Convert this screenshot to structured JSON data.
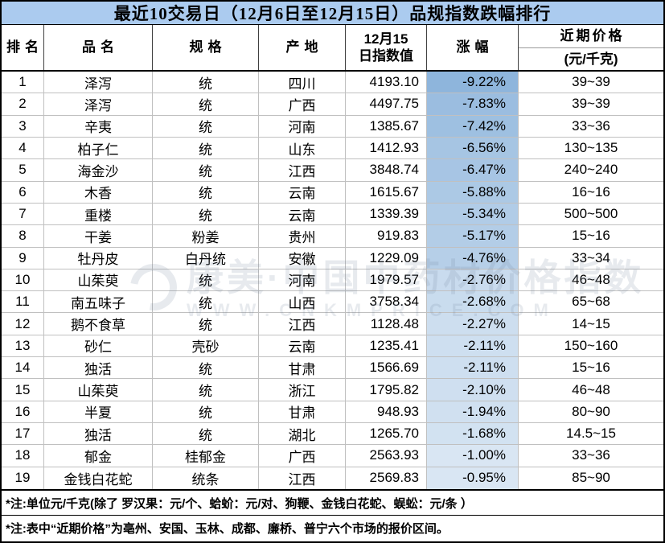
{
  "title": "最近10交易日（12月6日至12月15日）品规指数跌幅排行",
  "header": {
    "rank": "排名",
    "name": "品名",
    "spec": "规格",
    "origin": "产地",
    "index_line1": "12月15",
    "index_line2": "日指数值",
    "change": "涨幅",
    "price_line1": "近期价格",
    "price_line2": "(元/千克)"
  },
  "rows": [
    {
      "rank": "1",
      "name": "泽泻",
      "spec": "统",
      "origin": "四川",
      "index": "4193.10",
      "change": "-9.22%",
      "price": "39~39"
    },
    {
      "rank": "2",
      "name": "泽泻",
      "spec": "统",
      "origin": "广西",
      "index": "4497.75",
      "change": "-7.83%",
      "price": "39~39"
    },
    {
      "rank": "3",
      "name": "辛夷",
      "spec": "统",
      "origin": "河南",
      "index": "1385.67",
      "change": "-7.42%",
      "price": "33~36"
    },
    {
      "rank": "4",
      "name": "柏子仁",
      "spec": "统",
      "origin": "山东",
      "index": "1412.93",
      "change": "-6.56%",
      "price": "130~135"
    },
    {
      "rank": "5",
      "name": "海金沙",
      "spec": "统",
      "origin": "江西",
      "index": "3848.74",
      "change": "-6.47%",
      "price": "240~240"
    },
    {
      "rank": "6",
      "name": "木香",
      "spec": "统",
      "origin": "云南",
      "index": "1615.67",
      "change": "-5.88%",
      "price": "16~16"
    },
    {
      "rank": "7",
      "name": "重楼",
      "spec": "统",
      "origin": "云南",
      "index": "1339.39",
      "change": "-5.34%",
      "price": "500~500"
    },
    {
      "rank": "8",
      "name": "干姜",
      "spec": "粉姜",
      "origin": "贵州",
      "index": "919.83",
      "change": "-5.17%",
      "price": "15~16"
    },
    {
      "rank": "9",
      "name": "牡丹皮",
      "spec": "白丹统",
      "origin": "安徽",
      "index": "1229.09",
      "change": "-4.76%",
      "price": "33~34"
    },
    {
      "rank": "10",
      "name": "山茱萸",
      "spec": "统",
      "origin": "河南",
      "index": "1979.57",
      "change": "-2.76%",
      "price": "46~48"
    },
    {
      "rank": "11",
      "name": "南五味子",
      "spec": "统",
      "origin": "山西",
      "index": "3758.34",
      "change": "-2.68%",
      "price": "65~68"
    },
    {
      "rank": "12",
      "name": "鹅不食草",
      "spec": "统",
      "origin": "江西",
      "index": "1128.48",
      "change": "-2.27%",
      "price": "14~15"
    },
    {
      "rank": "13",
      "name": "砂仁",
      "spec": "壳砂",
      "origin": "云南",
      "index": "1235.41",
      "change": "-2.11%",
      "price": "150~160"
    },
    {
      "rank": "14",
      "name": "独活",
      "spec": "统",
      "origin": "甘肃",
      "index": "1566.69",
      "change": "-2.11%",
      "price": "15~16"
    },
    {
      "rank": "15",
      "name": "山茱萸",
      "spec": "统",
      "origin": "浙江",
      "index": "1795.82",
      "change": "-2.10%",
      "price": "46~48"
    },
    {
      "rank": "16",
      "name": "半夏",
      "spec": "统",
      "origin": "甘肃",
      "index": "948.93",
      "change": "-1.94%",
      "price": "80~90"
    },
    {
      "rank": "17",
      "name": "独活",
      "spec": "统",
      "origin": "湖北",
      "index": "1265.70",
      "change": "-1.68%",
      "price": "14.5~15"
    },
    {
      "rank": "18",
      "name": "郁金",
      "spec": "桂郁金",
      "origin": "广西",
      "index": "2563.93",
      "change": "-1.00%",
      "price": "33~36"
    },
    {
      "rank": "19",
      "name": "金钱白花蛇",
      "spec": "统条",
      "origin": "江西",
      "index": "2569.83",
      "change": "-0.95%",
      "price": "85~90"
    }
  ],
  "notes": [
    "*注:单位元/千克(除了 罗汉果：元/个、蛤蚧：元/对、狗鞭、金钱白花蛇、蜈蚣：元/条 ）",
    "*注:表中“近期价格”为亳州、安国、玉林、成都、廉桥、普宁六个市场的报价区间。"
  ],
  "watermark": {
    "text_cn": "康美·中国中药材价格指数",
    "text_en": "WWW.CNKMPRICE.COM"
  },
  "colors": {
    "title_bg": "#ABCBEF",
    "change_scale_dark": "#8EB5DC",
    "change_scale_light": "#D9E6F3",
    "grid": "#C0C0C0",
    "border": "#000000"
  }
}
